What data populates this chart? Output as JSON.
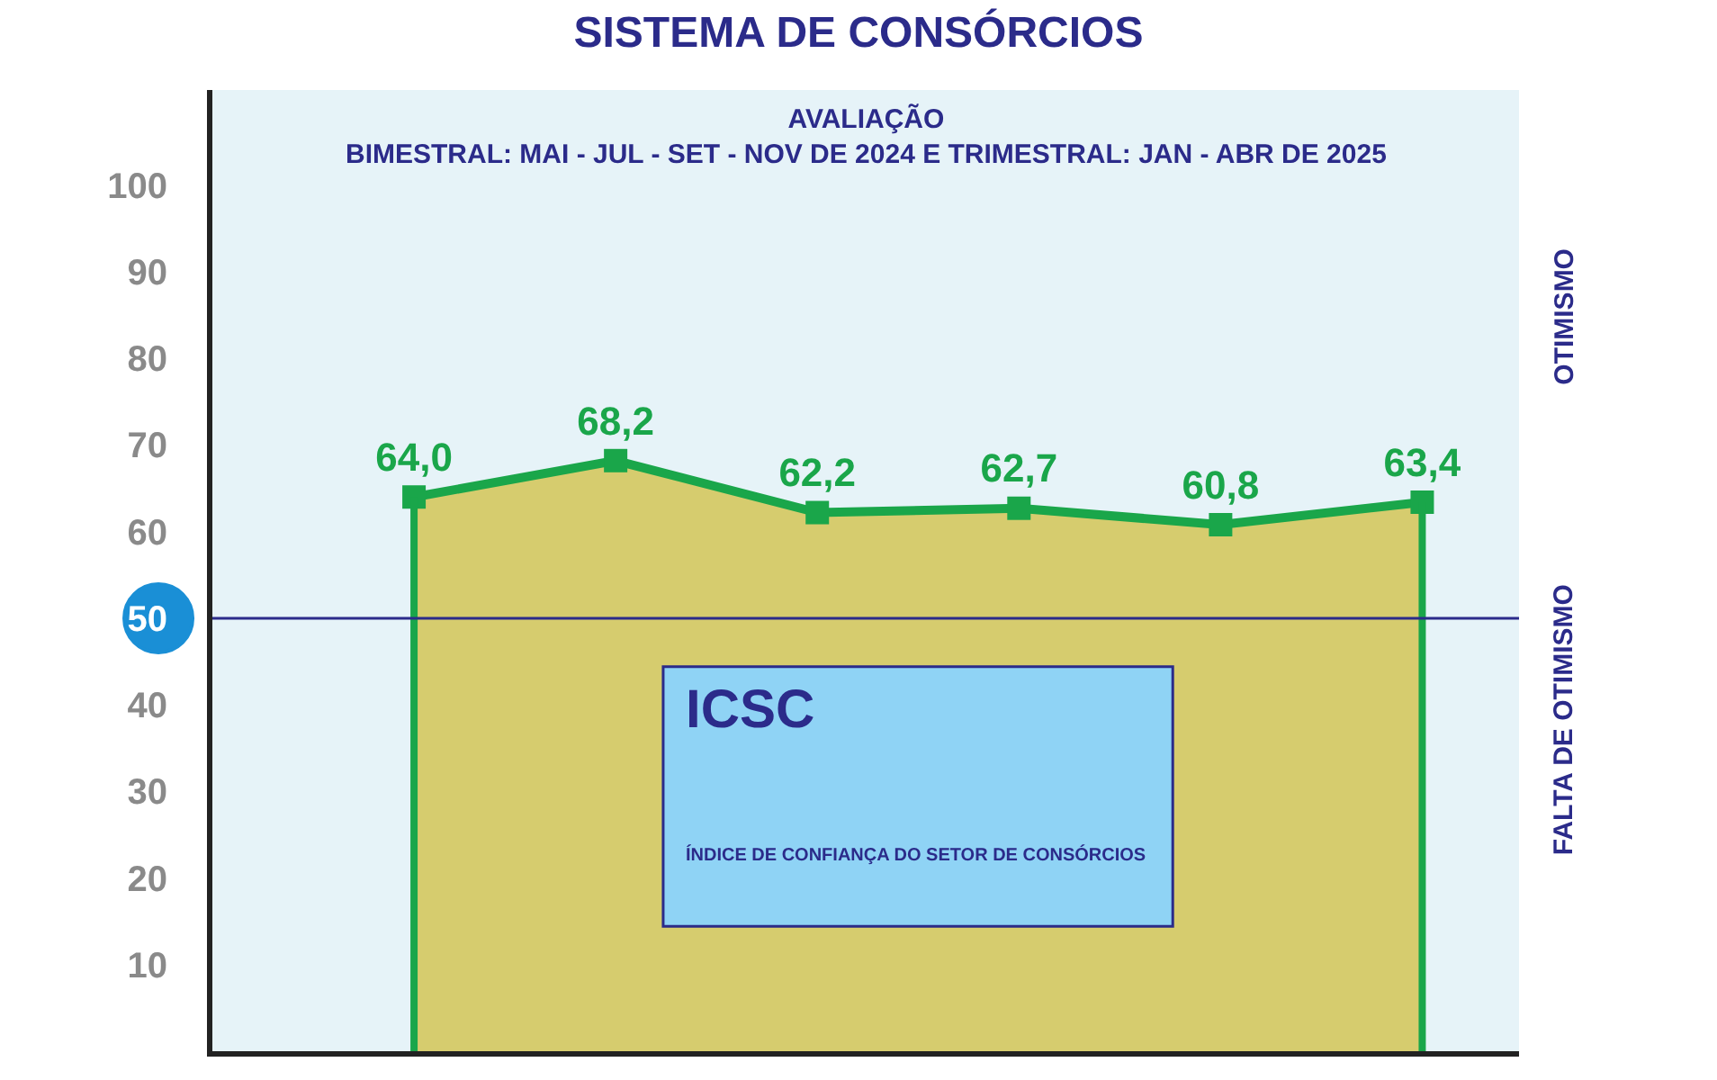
{
  "chart_data": {
    "type": "area",
    "title": "SISTEMA DE CONSÓRCIOS",
    "subtitle": "AVALIAÇÃO\nBIMESTRAL: MAI - JUL - SET - NOV DE 2024 E TRIMESTRAL: JAN - ABR DE 2025",
    "categories": [
      null,
      null,
      null,
      null,
      null,
      null
    ],
    "series": [
      {
        "color": "#1aa64a",
        "values": [
          64.0,
          68.2,
          62.2,
          62.7,
          60.8,
          63.4
        ]
      }
    ],
    "value_labels": [
      "64,0",
      "68,2",
      "62,2",
      "62,7",
      "60,8",
      "63,4"
    ],
    "ylim": [
      0,
      111
    ],
    "yticks": [
      10,
      20,
      30,
      40,
      50,
      60,
      70,
      80,
      90,
      100
    ],
    "marker": "square",
    "grid": false,
    "ref_lines": [
      {
        "axis": "y",
        "value": 50,
        "color": "#2b2b8a"
      }
    ],
    "annotations": [
      "ICSC",
      "ÍNDICE DE CONFIANÇA DO SETOR DE CONSÓRCIOS",
      "OTIMISMO",
      "FALTA DE OTIMISMO"
    ]
  }
}
